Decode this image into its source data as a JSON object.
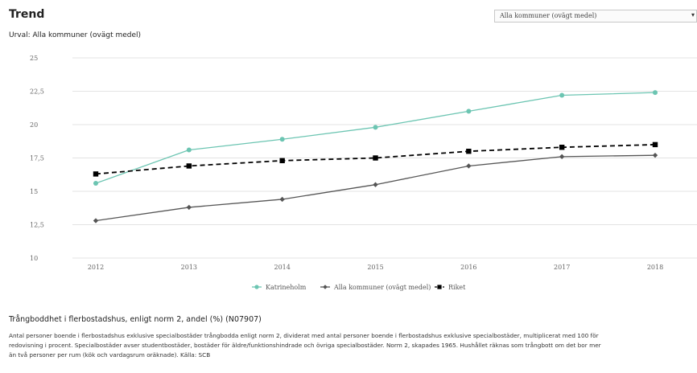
{
  "header": {
    "title": "Trend",
    "subtitle": "Urval: Alla kommuner (ovägt medel)"
  },
  "selector": {
    "value": "Alla kommuner (ovägt medel)",
    "icon": "chevron-down-icon"
  },
  "chart_data": {
    "type": "line",
    "x": [
      "2012",
      "2013",
      "2014",
      "2015",
      "2016",
      "2017",
      "2018"
    ],
    "ylim": [
      10,
      25
    ],
    "y_ticks": [
      "10",
      "12,5",
      "15",
      "17,5",
      "20",
      "22,5",
      "25"
    ],
    "grid": true,
    "legend_position": "bottom-center",
    "series": [
      {
        "name": "Katrineholm",
        "color": "#6cc5b2",
        "marker": "circle",
        "dash": "solid",
        "values": [
          15.6,
          18.1,
          18.9,
          19.8,
          21.0,
          22.2,
          22.4
        ]
      },
      {
        "name": "Alla kommuner (ovägt medel)",
        "color": "#555555",
        "marker": "diamond",
        "dash": "solid",
        "values": [
          12.8,
          13.8,
          14.4,
          15.5,
          16.9,
          17.6,
          17.7
        ]
      },
      {
        "name": "Riket",
        "color": "#000000",
        "marker": "square",
        "dash": "dashed",
        "values": [
          16.3,
          16.9,
          17.3,
          17.5,
          18.0,
          18.3,
          18.5
        ]
      }
    ]
  },
  "description": {
    "title": "Trångboddhet i flerbostadshus, enligt norm 2, andel (%) (N07907)",
    "lines": [
      "Antal personer boende i flerbostadshus exklusive specialbostäder trångbodda enligt norm 2, dividerat med antal personer boende i flerbostadshus exklusive specialbostäder, multiplicerat med 100 för",
      "redovisning i procent. Specialbostäder avser studentbostäder, bostäder för äldre/funktionshindrade och övriga specialbostäder. Norm 2, skapades 1965. Hushållet räknas som trångbott om det bor mer",
      "än två personer per rum (kök och vardagsrum oräknade). Källa: SCB"
    ]
  }
}
